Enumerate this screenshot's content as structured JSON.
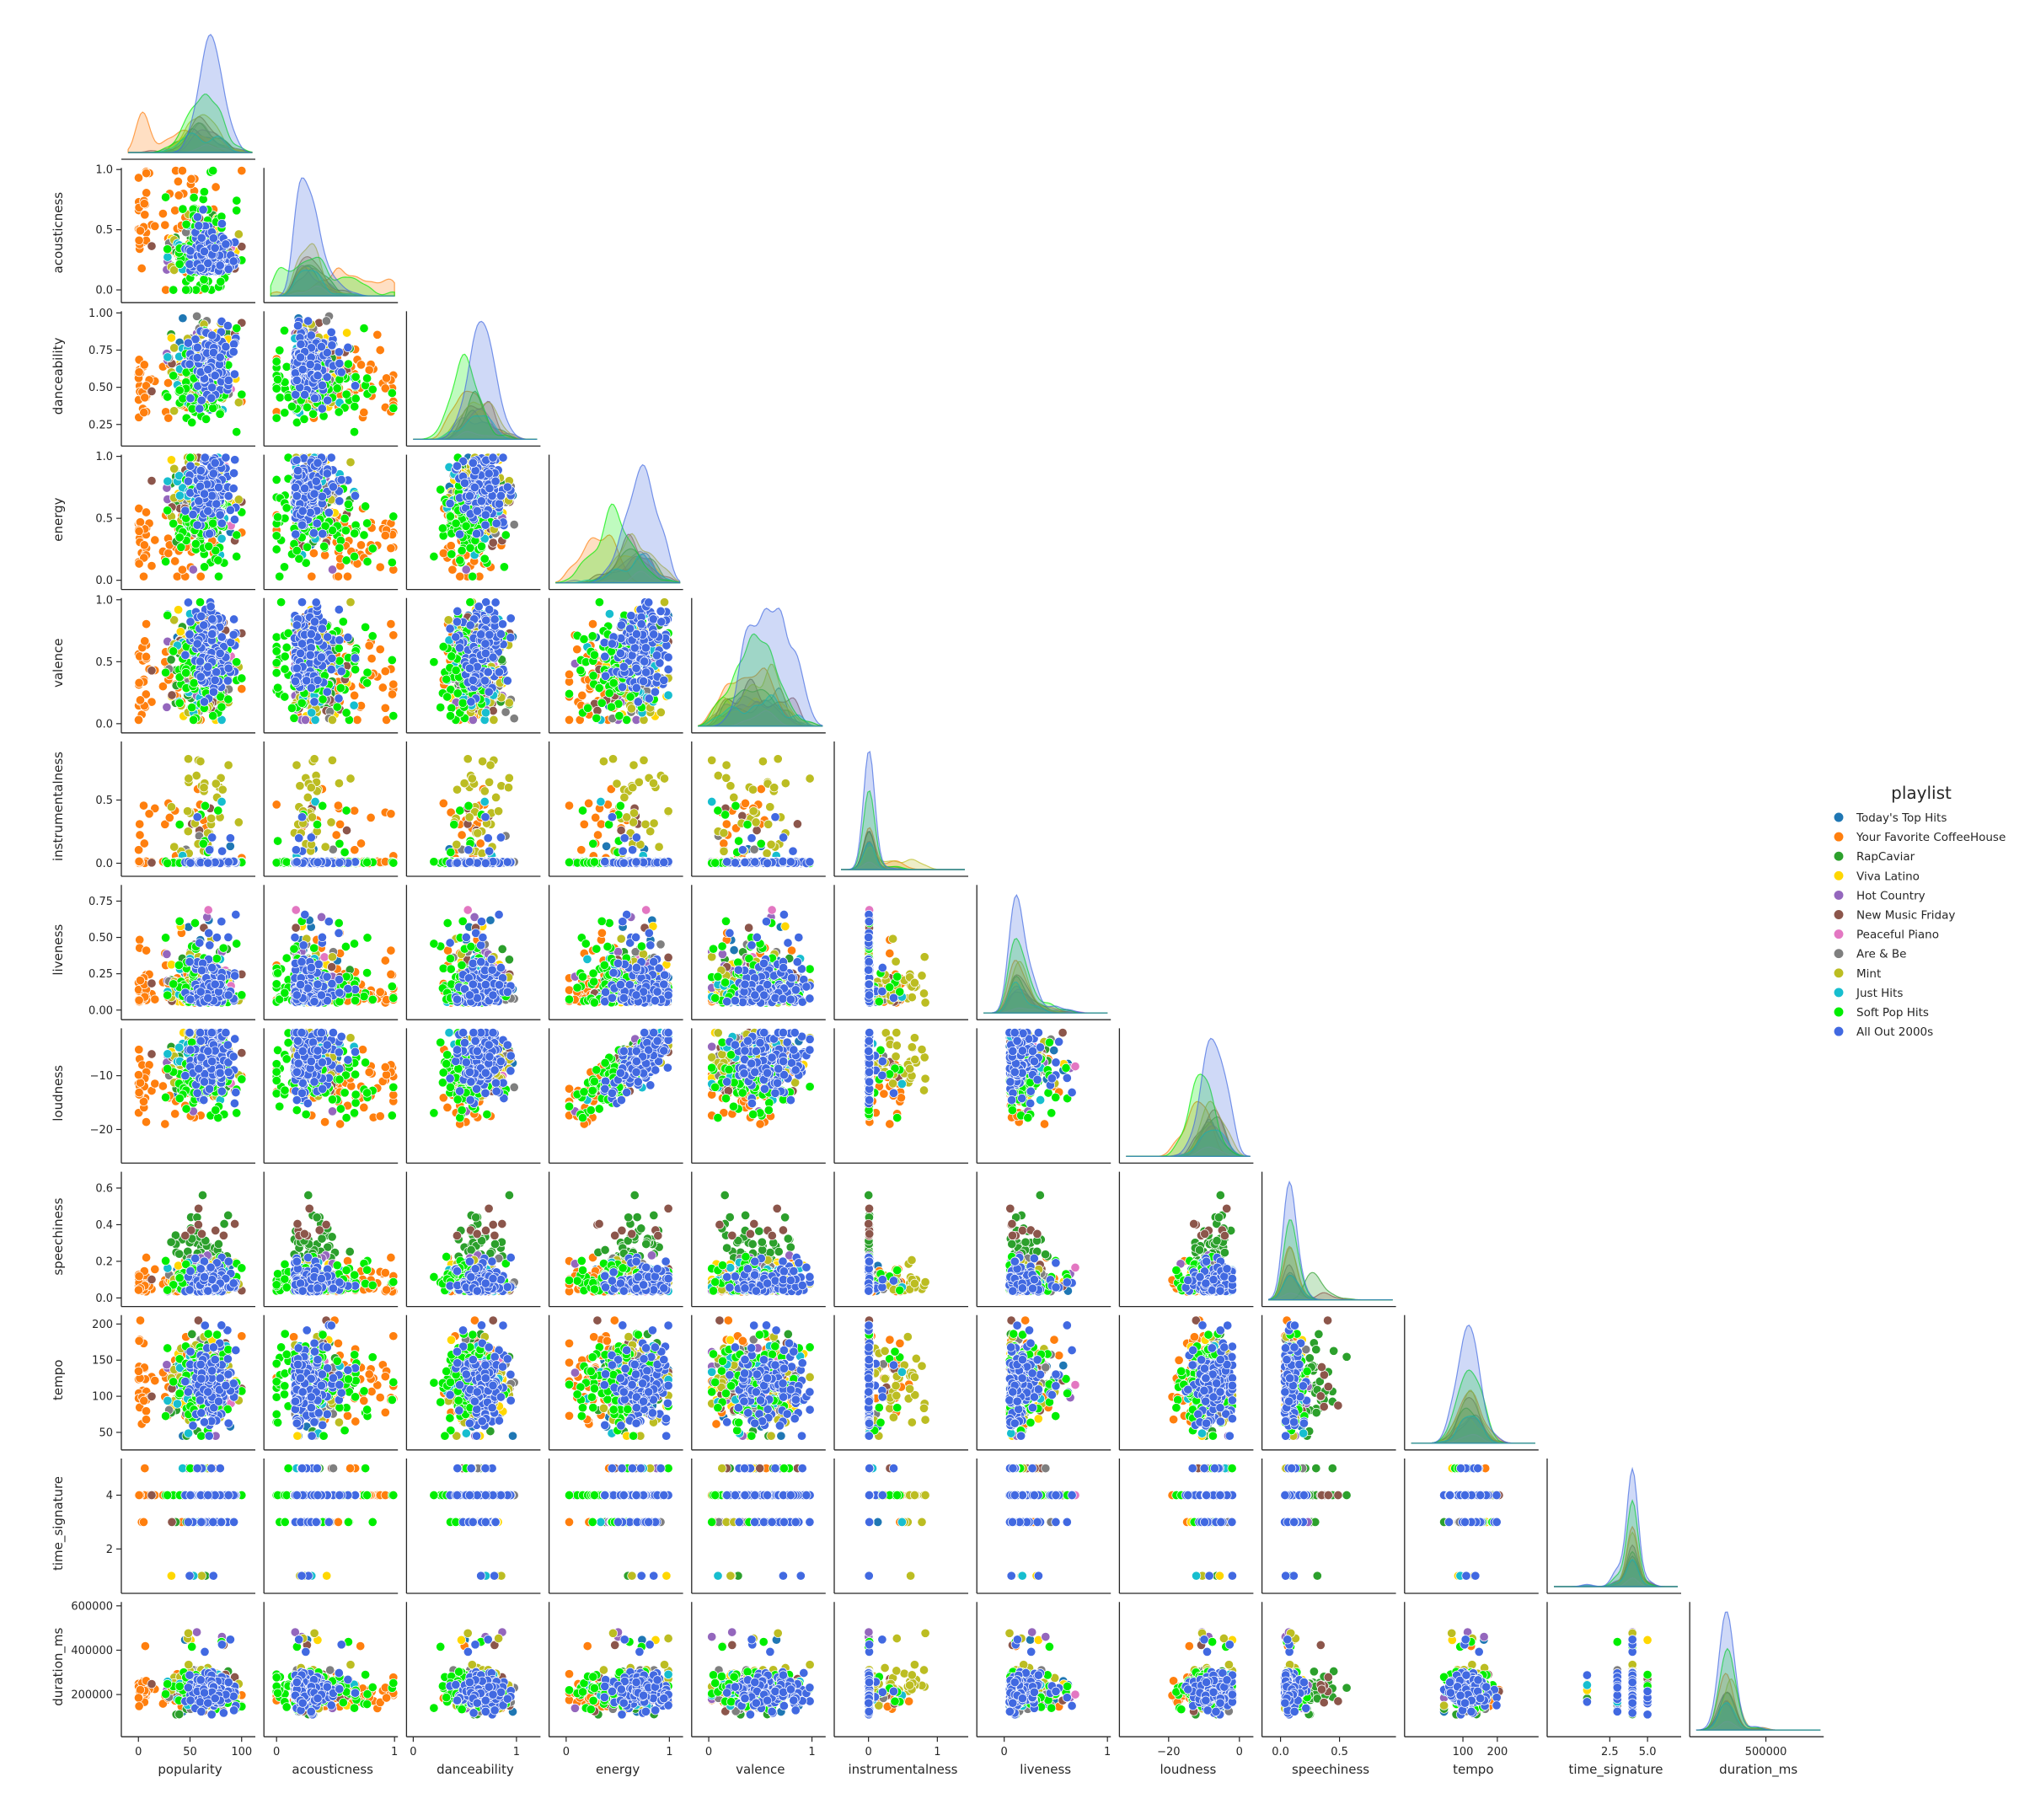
{
  "chart_data": {
    "type": "scatter",
    "subtype": "pairplot-corner",
    "variables": [
      "popularity",
      "acousticness",
      "danceability",
      "energy",
      "valence",
      "instrumentalness",
      "liveness",
      "loudness",
      "speechiness",
      "tempo",
      "time_signature",
      "duration_ms"
    ],
    "diagonal": "kde",
    "grid": false,
    "legend": {
      "title": "playlist",
      "placement": "right",
      "entries": [
        {
          "name": "Today's Top Hits",
          "color": "#1f77b4"
        },
        {
          "name": "Your Favorite CoffeeHouse",
          "color": "#ff7f0e"
        },
        {
          "name": "RapCaviar",
          "color": "#2ca02c"
        },
        {
          "name": "Viva Latino",
          "color": "#ffd700"
        },
        {
          "name": "Hot Country",
          "color": "#9467bd"
        },
        {
          "name": "New Music Friday",
          "color": "#8c564b"
        },
        {
          "name": "Peaceful Piano",
          "color": "#e377c2"
        },
        {
          "name": "Are & Be",
          "color": "#7f7f7f"
        },
        {
          "name": "Mint",
          "color": "#bcbd22"
        },
        {
          "name": "Just Hits",
          "color": "#17becf"
        },
        {
          "name": "Soft Pop Hits",
          "color": "#00ee00"
        },
        {
          "name": "All Out 2000s",
          "color": "#4169e1"
        }
      ]
    },
    "axes": {
      "popularity": {
        "range": [
          -10,
          110
        ],
        "ticks": [
          0,
          50,
          100
        ],
        "tick_labels": [
          "0",
          "50",
          "100"
        ]
      },
      "acousticness": {
        "range": [
          -0.05,
          1.0
        ],
        "ticks": [
          0.0,
          0.5,
          1.0
        ],
        "tick_labels": [
          "0.0",
          "0.5",
          "1.0"
        ],
        "x_tick_labels": [
          "0",
          "1"
        ],
        "x_ticks": [
          0,
          1
        ]
      },
      "danceability": {
        "range": [
          0.15,
          1.0
        ],
        "ticks": [
          0.25,
          0.5,
          0.75,
          1.0
        ],
        "tick_labels": [
          "0.25",
          "0.50",
          "0.75",
          "1.00"
        ],
        "x_ticks": [
          0,
          1
        ],
        "x_tick_labels": [
          "0",
          "1"
        ],
        "x_range": [
          0.0,
          1.2
        ]
      },
      "energy": {
        "range": [
          -0.02,
          1.0
        ],
        "ticks": [
          0.0,
          0.5,
          1.0
        ],
        "tick_labels": [
          "0.0",
          "0.5",
          "1.0"
        ],
        "x_ticks": [
          0,
          1
        ],
        "x_tick_labels": [
          "0",
          "1"
        ],
        "x_range": [
          -0.1,
          1.1
        ]
      },
      "valence": {
        "range": [
          -0.02,
          1.0
        ],
        "ticks": [
          0.0,
          0.5,
          1.0
        ],
        "tick_labels": [
          "0.0",
          "0.5",
          "1.0"
        ],
        "x_ticks": [
          0,
          1
        ],
        "x_tick_labels": [
          "0",
          "1"
        ],
        "x_range": [
          -0.1,
          1.1
        ]
      },
      "instrumentalness": {
        "range": [
          -0.05,
          0.95
        ],
        "ticks": [
          0.0,
          0.5
        ],
        "tick_labels": [
          "0.0",
          "0.5"
        ],
        "x_ticks": [
          0,
          1
        ],
        "x_tick_labels": [
          "0",
          "1"
        ],
        "x_range": [
          -0.4,
          1.4
        ]
      },
      "liveness": {
        "range": [
          -0.02,
          0.85
        ],
        "ticks": [
          0.0,
          0.25,
          0.5,
          0.75
        ],
        "tick_labels": [
          "0.00",
          "0.25",
          "0.50",
          "0.75"
        ],
        "x_ticks": [
          0,
          1
        ],
        "x_tick_labels": [
          "0",
          "1"
        ],
        "x_range": [
          -0.2,
          1.0
        ]
      },
      "loudness": {
        "range": [
          -25,
          -1.5
        ],
        "ticks": [
          -10,
          -20
        ],
        "tick_labels": [
          "−10",
          "−20"
        ],
        "x_ticks": [
          -20,
          0
        ],
        "x_tick_labels": [
          "−20",
          "0"
        ],
        "x_range": [
          -32,
          3
        ]
      },
      "speechiness": {
        "range": [
          -0.01,
          0.68
        ],
        "ticks": [
          0.0,
          0.2,
          0.4,
          0.6
        ],
        "tick_labels": [
          "0.0",
          "0.2",
          "0.4",
          "0.6"
        ],
        "x_ticks": [
          0.0,
          0.5
        ],
        "x_tick_labels": [
          "0.0",
          "0.5"
        ],
        "x_range": [
          -0.1,
          0.95
        ]
      },
      "tempo": {
        "range": [
          35,
          210
        ],
        "ticks": [
          50,
          100,
          150,
          200
        ],
        "tick_labels": [
          "50",
          "100",
          "150",
          "200"
        ],
        "x_ticks": [
          100,
          200
        ],
        "x_tick_labels": [
          "100",
          "200"
        ],
        "x_range": [
          -50,
          310
        ]
      },
      "time_signature": {
        "range": [
          0.6,
          5.3
        ],
        "ticks": [
          2,
          4
        ],
        "tick_labels": [
          "2",
          "4"
        ],
        "x_ticks": [
          2.5,
          5.0
        ],
        "x_tick_labels": [
          "2.5",
          "5.0"
        ],
        "x_range": [
          -1.2,
          7.0
        ]
      },
      "duration_ms": {
        "range": [
          40000,
          610000
        ],
        "ticks": [
          200000,
          400000,
          600000
        ],
        "tick_labels": [
          "200000",
          "400000",
          "600000"
        ],
        "x_ticks": [
          500000
        ],
        "x_tick_labels": [
          "500000"
        ],
        "x_range": [
          -10000,
          900000
        ]
      }
    }
  }
}
